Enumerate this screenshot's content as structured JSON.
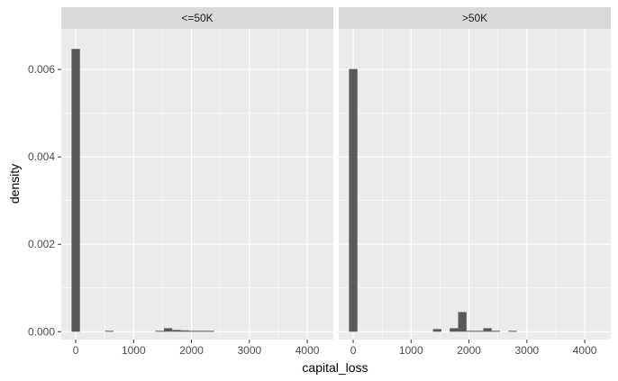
{
  "chart_data": {
    "type": "bar",
    "subtype": "faceted-histogram",
    "xlabel": "capital_loss",
    "ylabel": "density",
    "xlim": [
      -250,
      4450
    ],
    "ylim": [
      -0.00018,
      0.00693
    ],
    "x_ticks": [
      0,
      1000,
      2000,
      3000,
      4000
    ],
    "x_tick_labels": [
      "0",
      "1000",
      "2000",
      "3000",
      "4000"
    ],
    "y_ticks": [
      0,
      0.002,
      0.004,
      0.006
    ],
    "y_tick_labels": [
      "0.000",
      "0.002",
      "0.004",
      "0.006"
    ],
    "bin_width": 145,
    "grid": true,
    "colors": {
      "panel": "#ebebeb",
      "grid": "#ffffff",
      "strip": "#d9d9d9",
      "bar": "#595959",
      "text": "#4d4d4d",
      "title": "#000000"
    },
    "panels": [
      {
        "label": "<=50K",
        "bins": [
          {
            "x": 0,
            "value": 0.00647
          },
          {
            "x": 580,
            "value": 2e-05
          },
          {
            "x": 1450,
            "value": 2e-05
          },
          {
            "x": 1595,
            "value": 8e-05
          },
          {
            "x": 1740,
            "value": 4e-05
          },
          {
            "x": 1885,
            "value": 3e-05
          },
          {
            "x": 2030,
            "value": 2e-05
          },
          {
            "x": 2175,
            "value": 2e-05
          },
          {
            "x": 2320,
            "value": 2e-05
          }
        ]
      },
      {
        "label": ">50K",
        "bins": [
          {
            "x": 0,
            "value": 0.00601
          },
          {
            "x": 1450,
            "value": 6e-05
          },
          {
            "x": 1740,
            "value": 8e-05
          },
          {
            "x": 1885,
            "value": 0.00045
          },
          {
            "x": 2030,
            "value": 2e-05
          },
          {
            "x": 2175,
            "value": 2e-05
          },
          {
            "x": 2320,
            "value": 8e-05
          },
          {
            "x": 2465,
            "value": 2e-05
          },
          {
            "x": 2755,
            "value": 2e-05
          }
        ]
      }
    ]
  }
}
